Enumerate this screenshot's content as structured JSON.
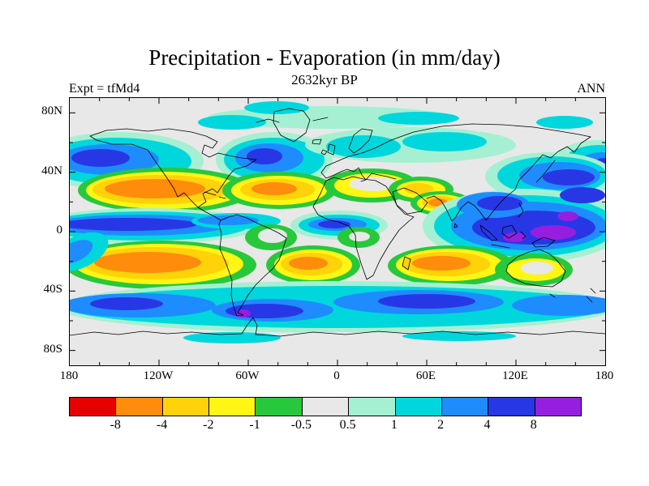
{
  "chart_data": {
    "type": "heatmap",
    "title": "Precipitation - Evaporation (in mm/day)",
    "subtitle": "2632kyr BP",
    "annotations": {
      "experiment": "Expt = tfMd4",
      "season": "ANN"
    },
    "units": "mm/day",
    "projection": "global lat-lon map, 90N to 90S, 180W to 180E",
    "contour_levels": [
      -8,
      -4,
      -2,
      -1,
      -0.5,
      0.5,
      1,
      2,
      4,
      8
    ],
    "colorbar_labels": [
      "-8",
      "-4",
      "-2",
      "-1",
      "-0.5",
      "0.5",
      "1",
      "2",
      "4",
      "8"
    ],
    "colors": [
      "#e60000",
      "#ff8c0a",
      "#ffd20a",
      "#fff614",
      "#28c83c",
      "#e8e8e8",
      "#a5f0d2",
      "#00d7dc",
      "#1e8cff",
      "#2837e6",
      "#961ee0"
    ],
    "lon_ticks": [
      {
        "label": "180",
        "lon": -180
      },
      {
        "label": "120W",
        "lon": -120
      },
      {
        "label": "60W",
        "lon": -60
      },
      {
        "label": "0",
        "lon": 0
      },
      {
        "label": "60E",
        "lon": 60
      },
      {
        "label": "120E",
        "lon": 120
      },
      {
        "label": "180",
        "lon": 180
      }
    ],
    "lat_ticks": [
      {
        "label": "80N",
        "lat": 80
      },
      {
        "label": "40N",
        "lat": 40
      },
      {
        "label": "0",
        "lat": 0
      },
      {
        "label": "40S",
        "lat": -40
      },
      {
        "label": "80S",
        "lat": -80
      }
    ],
    "pattern_summary": [
      "Dark blue positive P-E (4-8 mm/day) along the ITCZ: equatorial west/central Pacific, Atlantic ITCZ, and a broad Indian Ocean / Maritime Continent maximum with purple cores (>8 mm/day) near Indonesia",
      "Orange negative P-E cores (-8 to -4 mm/day) over the subtropical eastern/central Pacific in both hemispheres, the subtropical Atlantic, the Arabian Sea region, and the southern Indian Ocean, each ringed by yellow (-2 to -1) and green (-1 to -0.5)",
      "Cyan and blue positive bands (1-4 mm/day) along the mid-latitude storm tracks: North Pacific, North Atlantic south of Greenland, east Asia / northwest Pacific, and a continuous Southern Ocean band with dark blue cores and a small purple spot near Patagonia",
      "Near-neutral gray (-0.5 to 0.5 mm/day) over polar caps, Greenland, the Sahara interior, central Australia, and continental interiors"
    ]
  }
}
